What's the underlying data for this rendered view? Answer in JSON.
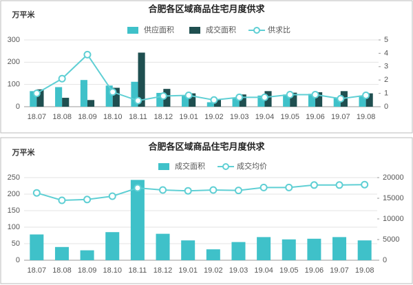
{
  "chart_data": [
    {
      "type": "combo",
      "title": "合肥各区域商品住宅月度供求",
      "y_label": "万平米",
      "categories": [
        "18.07",
        "18.08",
        "18.09",
        "18.10",
        "18.11",
        "18.12",
        "19.01",
        "19.02",
        "19.03",
        "19.04",
        "19.05",
        "19.06",
        "19.07",
        "19.08"
      ],
      "series": [
        {
          "name": "供应面积",
          "type": "bar",
          "color": "#3fc1c9",
          "values": [
            70,
            88,
            120,
            95,
            112,
            62,
            52,
            20,
            38,
            50,
            55,
            58,
            42,
            50
          ]
        },
        {
          "name": "成交面积",
          "type": "bar",
          "color": "#1f4f50",
          "values": [
            78,
            40,
            30,
            85,
            243,
            80,
            60,
            33,
            55,
            70,
            63,
            65,
            70,
            60
          ]
        },
        {
          "name": "供求比",
          "type": "line",
          "axis": "y2",
          "color": "#5fcfd4",
          "values": [
            1.0,
            2.1,
            3.9,
            1.1,
            0.45,
            0.8,
            0.85,
            0.5,
            0.7,
            0.7,
            0.9,
            0.9,
            0.6,
            0.85
          ]
        }
      ],
      "ylim": [
        0,
        300
      ],
      "yticks": [
        0,
        100,
        200,
        300
      ],
      "y2lim": [
        0,
        5
      ],
      "y2ticks": [
        0,
        1,
        2,
        3,
        4,
        5
      ]
    },
    {
      "type": "combo",
      "title": "合肥各区域商品住宅月度供求",
      "y_label": "万平米",
      "categories": [
        "18.07",
        "18.08",
        "18.09",
        "18.10",
        "18.11",
        "18.12",
        "19.01",
        "19.02",
        "19.03",
        "19.04",
        "19.05",
        "19.06",
        "19.07",
        "19.08"
      ],
      "series": [
        {
          "name": "成交面积",
          "type": "bar",
          "color": "#3fc1c9",
          "values": [
            78,
            40,
            30,
            85,
            243,
            80,
            60,
            33,
            55,
            70,
            63,
            65,
            70,
            60
          ]
        },
        {
          "name": "成交均价",
          "type": "line",
          "axis": "y2",
          "color": "#5fcfd4",
          "values": [
            16300,
            14500,
            14700,
            15500,
            17500,
            17000,
            16800,
            17000,
            16900,
            17600,
            17600,
            18200,
            18200,
            18300
          ]
        }
      ],
      "ylim": [
        0,
        250
      ],
      "yticks": [
        0,
        50,
        100,
        150,
        200,
        250
      ],
      "y2lim": [
        0,
        20000
      ],
      "y2ticks": [
        0,
        5000,
        10000,
        15000,
        20000
      ]
    }
  ]
}
